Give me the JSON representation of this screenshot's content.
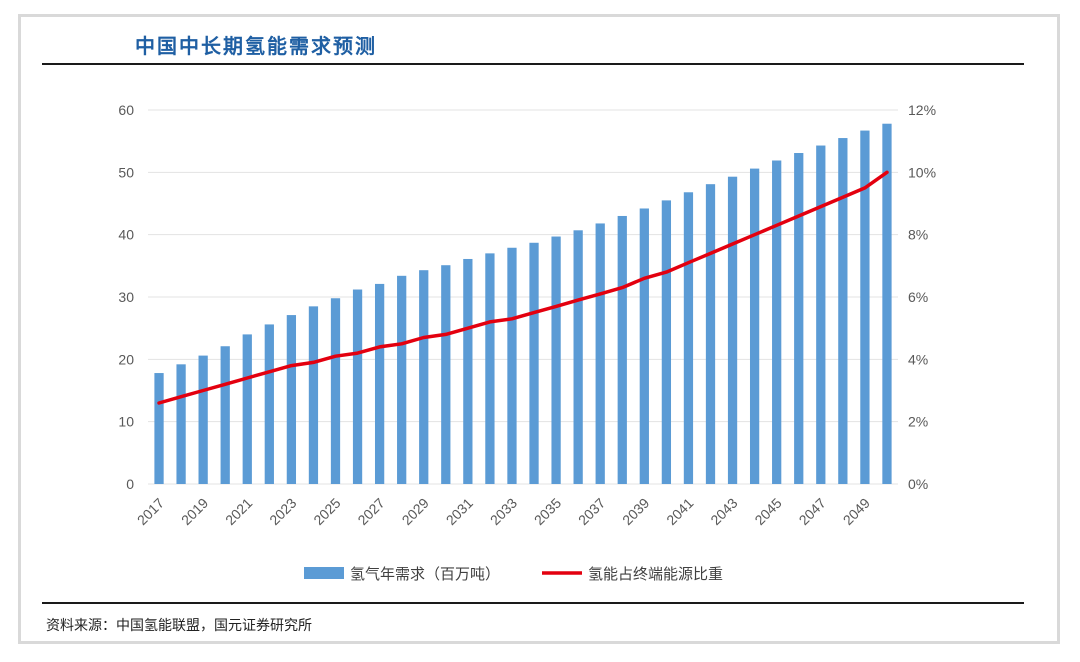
{
  "header": {
    "title": "中国中长期氢能需求预测"
  },
  "footer": {
    "source": "资料来源：中国氢能联盟，国元证券研究所"
  },
  "colors": {
    "bar": "#5b9bd5",
    "line": "#e3000f",
    "title": "#1f5fa3"
  },
  "chart_data": {
    "type": "bar",
    "categories": [
      "2017",
      "2018",
      "2019",
      "2020",
      "2021",
      "2022",
      "2023",
      "2024",
      "2025",
      "2026",
      "2027",
      "2028",
      "2029",
      "2030",
      "2031",
      "2032",
      "2033",
      "2034",
      "2035",
      "2036",
      "2037",
      "2038",
      "2039",
      "2040",
      "2041",
      "2042",
      "2043",
      "2044",
      "2045",
      "2046",
      "2047",
      "2048",
      "2049",
      "2050"
    ],
    "x_tick_labels": [
      "2017",
      "2019",
      "2021",
      "2023",
      "2025",
      "2027",
      "2029",
      "2031",
      "2033",
      "2035",
      "2037",
      "2039",
      "2041",
      "2043",
      "2045",
      "2047",
      "2049"
    ],
    "series": [
      {
        "name": "氢气年需求（百万吨）",
        "type": "bar",
        "axis": "left",
        "values": [
          17.8,
          19.2,
          20.6,
          22.1,
          24.0,
          25.6,
          27.1,
          28.5,
          29.8,
          31.2,
          32.1,
          33.4,
          34.3,
          35.1,
          36.1,
          37.0,
          37.9,
          38.7,
          39.7,
          40.7,
          41.8,
          43.0,
          44.2,
          45.5,
          46.8,
          48.1,
          49.3,
          50.6,
          51.9,
          53.1,
          54.3,
          55.5,
          56.7,
          57.8
        ]
      },
      {
        "name": "氢能占终端能源比重",
        "type": "line",
        "axis": "right",
        "values": [
          0.026,
          0.028,
          0.03,
          0.032,
          0.034,
          0.036,
          0.038,
          0.039,
          0.041,
          0.042,
          0.044,
          0.045,
          0.047,
          0.048,
          0.05,
          0.052,
          0.053,
          0.055,
          0.057,
          0.059,
          0.061,
          0.063,
          0.066,
          0.068,
          0.071,
          0.074,
          0.077,
          0.08,
          0.083,
          0.086,
          0.089,
          0.092,
          0.095,
          0.1
        ]
      }
    ],
    "y_left": {
      "ylim": [
        0,
        60
      ],
      "ticks": [
        "0",
        "10",
        "20",
        "30",
        "40",
        "50",
        "60"
      ]
    },
    "y_right": {
      "ylim": [
        0,
        0.12
      ],
      "ticks": [
        "0%",
        "2%",
        "4%",
        "6%",
        "8%",
        "10%",
        "12%"
      ]
    },
    "grid": true,
    "legend_position": "bottom"
  }
}
